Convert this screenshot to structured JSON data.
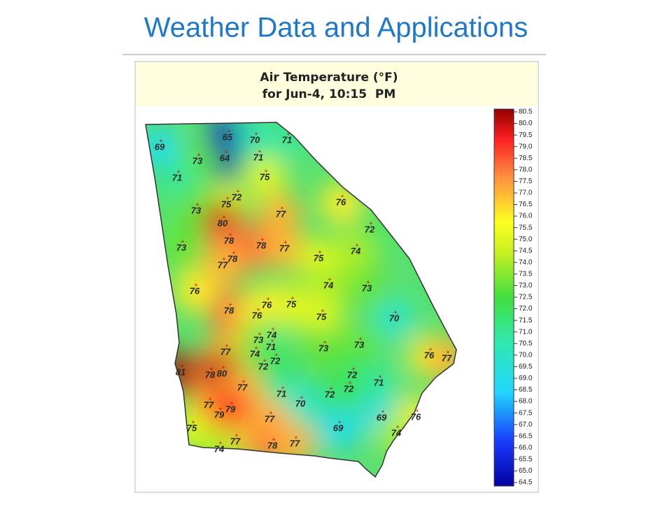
{
  "header": {
    "title": "Weather Data and Applications"
  },
  "map": {
    "title": "Air Temperature (°F)",
    "subtitle": "for Jun-4, 10:15  PM",
    "colorbar": {
      "range": [
        64.5,
        80.5
      ],
      "ticks": [
        80.5,
        {
          "value": 80,
          "label": "80.0"
        },
        79.5,
        {
          "value": 79,
          "label": "79.0"
        },
        78.5,
        {
          "value": 78,
          "label": "78.0"
        },
        77.5,
        {
          "value": 77,
          "label": "77.0"
        },
        76.5,
        {
          "value": 76,
          "label": "76.0"
        },
        75.5,
        {
          "value": 75,
          "label": "75.0"
        },
        74.5,
        {
          "value": 74,
          "label": "74.0"
        },
        73.5,
        {
          "value": 73,
          "label": "73.0"
        },
        72.5,
        {
          "value": 72,
          "label": "72.0"
        },
        71.5,
        {
          "value": 71,
          "label": "71.0"
        },
        70.5,
        {
          "value": 70,
          "label": "70.0"
        },
        69.5,
        {
          "value": 69,
          "label": "69.0"
        },
        68.5,
        {
          "value": 68,
          "label": "68.0"
        },
        67.5,
        {
          "value": 67,
          "label": "67.0"
        },
        66.5,
        {
          "value": 66,
          "label": "66.0"
        },
        65.5,
        {
          "value": 65,
          "label": "65.0"
        },
        64.5
      ]
    },
    "stations": [
      69,
      65,
      70,
      71,
      64,
      71,
      73,
      71,
      75,
      72,
      75,
      76,
      73,
      77,
      80,
      72,
      78,
      73,
      78,
      77,
      74,
      78,
      77,
      75,
      74,
      73,
      76,
      75,
      76,
      78,
      76,
      75,
      70,
      74,
      73,
      71,
      73,
      77,
      74,
      73,
      76,
      77,
      72,
      72,
      72,
      81,
      78,
      80,
      72,
      71,
      77,
      71,
      72,
      70,
      77,
      79,
      79,
      77,
      69,
      76,
      75,
      69,
      74,
      77,
      78,
      77,
      74
    ]
  }
}
